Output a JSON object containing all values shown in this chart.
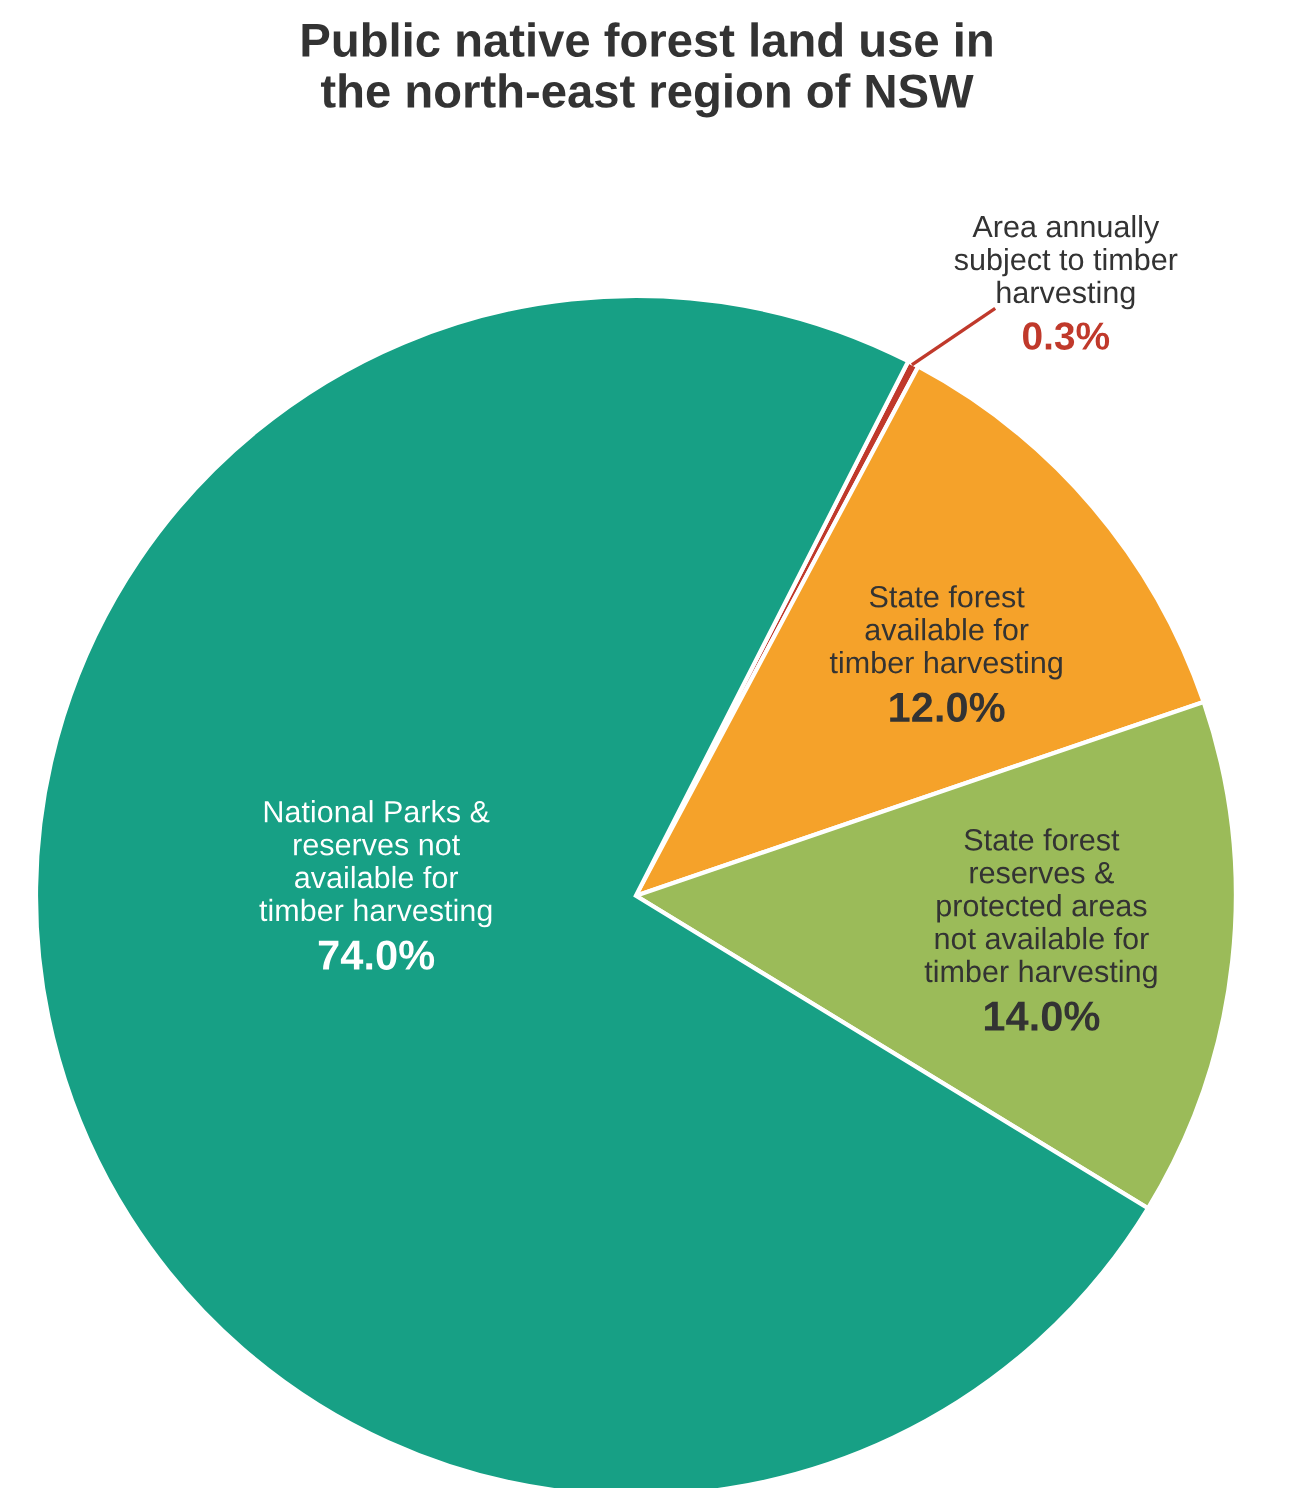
{
  "chart_data": {
    "type": "pie",
    "title": "Public native forest land use in\nthe north-east region of NSW",
    "categories": [
      "Area annually\nsubject to timber\nharvesting",
      "State forest\navailable for\ntimber harvesting",
      "State forest\nreserves &\nprotected areas\nnot available for\ntimber harvesting",
      "National Parks &\nreserves not\navailable for\ntimber harvesting"
    ],
    "values": [
      0.3,
      12.0,
      14.0,
      74.0
    ],
    "colors": [
      "#c0392b",
      "#f5a22a",
      "#9bbb59",
      "#17a085"
    ],
    "value_labels": [
      "0.3%",
      "12.0%",
      "14.0%",
      "74.0%"
    ]
  }
}
